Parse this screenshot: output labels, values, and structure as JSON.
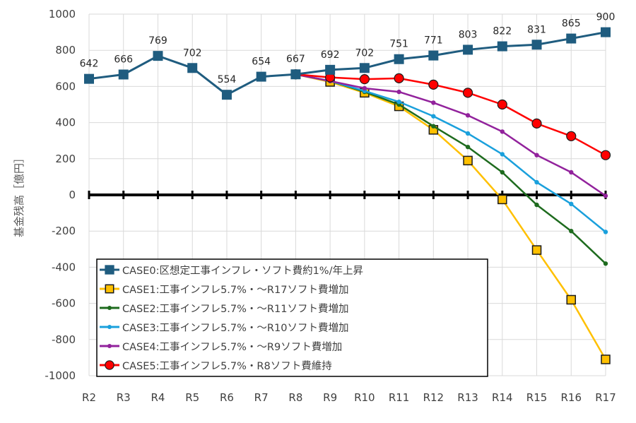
{
  "chart_data": {
    "type": "line",
    "title": "",
    "xlabel": "",
    "ylabel": "基金残高［億円］",
    "ylim": [
      -1000,
      1000
    ],
    "yticks": [
      1000,
      800,
      600,
      400,
      200,
      0,
      -200,
      -400,
      -600,
      -800,
      -1000
    ],
    "yticklabels": [
      "1000",
      "800",
      "600",
      "400",
      "200",
      "0",
      "-200",
      "-400",
      "-600",
      "-800",
      "-1000"
    ],
    "categories": [
      "R2",
      "R3",
      "R4",
      "R5",
      "R6",
      "R7",
      "R8",
      "R9",
      "R10",
      "R11",
      "R12",
      "R13",
      "R14",
      "R15",
      "R16",
      "R17"
    ],
    "grid": true,
    "legend_position": "bottom-left",
    "series": [
      {
        "name": "CASE0:区想定工事インフレ・ソフト費約1%/年上昇",
        "color": "#1F5C7F",
        "marker": "square-large",
        "values": [
          642,
          666,
          769,
          702,
          554,
          654,
          667,
          692,
          702,
          751,
          771,
          803,
          822,
          831,
          865,
          900
        ],
        "data_labels": [
          "642",
          "666",
          "769",
          "702",
          "554",
          "654",
          "667",
          "692",
          "702",
          "751",
          "771",
          "803",
          "822",
          "831",
          "865",
          "900"
        ]
      },
      {
        "name": "CASE1:工事インフレ5.7%・～R17ソフト費増加",
        "color": "#FFC000",
        "marker": "square-outlined",
        "values": [
          null,
          null,
          null,
          null,
          null,
          null,
          667,
          625,
          565,
          490,
          360,
          190,
          -25,
          -305,
          -580,
          -910
        ]
      },
      {
        "name": "CASE2:工事インフレ5.7%・～R11ソフト費増加",
        "color": "#1E6B1E",
        "marker": "dot",
        "values": [
          null,
          null,
          null,
          null,
          null,
          null,
          667,
          630,
          570,
          500,
          380,
          265,
          125,
          -55,
          -200,
          -380
        ]
      },
      {
        "name": "CASE3:工事インフレ5.7%・～R10ソフト費増加",
        "color": "#1AA0DC",
        "marker": "dot",
        "values": [
          null,
          null,
          null,
          null,
          null,
          null,
          667,
          630,
          575,
          515,
          435,
          340,
          225,
          70,
          -50,
          -205
        ]
      },
      {
        "name": "CASE4:工事インフレ5.7%・～R9ソフト費増加",
        "color": "#92229C",
        "marker": "dot",
        "values": [
          null,
          null,
          null,
          null,
          null,
          null,
          667,
          630,
          590,
          570,
          510,
          440,
          350,
          220,
          125,
          -5
        ]
      },
      {
        "name": "CASE5:工事インフレ5.7%・R8ソフト費維持",
        "color": "#FF0000",
        "marker": "circle-outlined",
        "values": [
          null,
          null,
          null,
          null,
          null,
          null,
          667,
          650,
          640,
          645,
          610,
          565,
          500,
          395,
          325,
          220
        ]
      }
    ]
  }
}
